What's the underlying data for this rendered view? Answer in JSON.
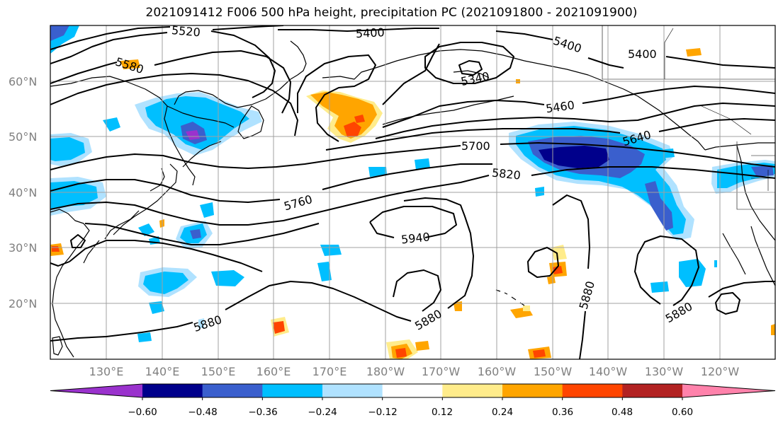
{
  "title": "2021091412 F006 500 hPa height, precipitation PC (2021091800 - 2021091900)",
  "lat_labels": [
    "60°N",
    "50°N",
    "40°N",
    "30°N",
    "20°N"
  ],
  "lon_labels": [
    "130°E",
    "140°E",
    "150°E",
    "160°E",
    "170°E",
    "180°W",
    "170°W",
    "160°W",
    "150°W",
    "140°W",
    "130°W",
    "120°W"
  ],
  "contour_labels": [
    "5520",
    "5400",
    "5400",
    "5400",
    "5580",
    "5340",
    "5460",
    "5640",
    "5700",
    "5820",
    "5760",
    "5940",
    "5880",
    "5880",
    "5880",
    "5880"
  ],
  "colorbar": {
    "ticks": [
      "−0.60",
      "−0.48",
      "−0.36",
      "−0.24",
      "−0.12",
      "0.12",
      "0.24",
      "0.36",
      "0.48",
      "0.60"
    ],
    "colors": [
      "#9a32cd",
      "#00008b",
      "#3a5fcd",
      "#00bfff",
      "#b0e2ff",
      "#ffffff",
      "#ffec8b",
      "#ffa500",
      "#ff4500",
      "#b22222",
      "#ff82ab"
    ]
  },
  "palette": {
    "neg_strong": "#00008b",
    "neg_mid": "#3a5fcd",
    "neg_light": "#00bfff",
    "neg_faint": "#b0e2ff",
    "pos_faint": "#ffec8b",
    "pos_mid": "#ffa500",
    "pos_strong": "#ff4500",
    "pos_max": "#b22222"
  }
}
